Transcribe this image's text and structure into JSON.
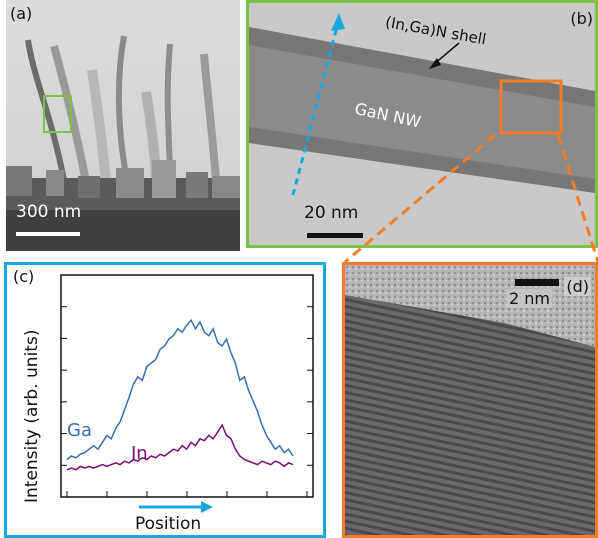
{
  "panel_a": {
    "label": "(a)",
    "scale": "300 nm"
  },
  "panel_b": {
    "label": "(b)",
    "scale": "20 nm",
    "shell_label": "(In,Ga)N shell",
    "core_label": "GaN NW"
  },
  "panel_c": {
    "label": "(c)",
    "ylabel": "Intensity (arb. units)",
    "xlabel": "Position"
  },
  "panel_d": {
    "label": "(d)",
    "scale": "2 nm"
  },
  "colors": {
    "green_frame": "#7dc242",
    "orange_frame": "#ef7d2a",
    "blue_frame": "#1aa7e0",
    "ga_line": "#3a6db4",
    "in_line": "#7a0a7a"
  },
  "chart_data": {
    "type": "line",
    "xlabel": "Position",
    "ylabel": "Intensity (arb. units)",
    "series": [
      {
        "name": "Ga",
        "values": [
          0.16,
          0.18,
          0.17,
          0.19,
          0.2,
          0.22,
          0.24,
          0.22,
          0.26,
          0.3,
          0.28,
          0.34,
          0.38,
          0.45,
          0.52,
          0.6,
          0.64,
          0.62,
          0.7,
          0.72,
          0.74,
          0.8,
          0.82,
          0.86,
          0.88,
          0.92,
          0.9,
          0.94,
          0.97,
          0.92,
          0.96,
          0.9,
          0.88,
          0.92,
          0.84,
          0.82,
          0.86,
          0.78,
          0.72,
          0.62,
          0.64,
          0.56,
          0.5,
          0.44,
          0.36,
          0.3,
          0.26,
          0.22,
          0.24,
          0.2,
          0.22,
          0.18
        ]
      },
      {
        "name": "In",
        "values": [
          0.1,
          0.11,
          0.1,
          0.12,
          0.11,
          0.12,
          0.11,
          0.12,
          0.13,
          0.12,
          0.13,
          0.14,
          0.13,
          0.15,
          0.14,
          0.16,
          0.15,
          0.17,
          0.16,
          0.18,
          0.17,
          0.19,
          0.18,
          0.2,
          0.22,
          0.21,
          0.24,
          0.22,
          0.26,
          0.24,
          0.28,
          0.27,
          0.3,
          0.28,
          0.32,
          0.36,
          0.3,
          0.28,
          0.22,
          0.18,
          0.16,
          0.15,
          0.14,
          0.13,
          0.15,
          0.14,
          0.13,
          0.15,
          0.14,
          0.12,
          0.14,
          0.13
        ]
      }
    ]
  }
}
